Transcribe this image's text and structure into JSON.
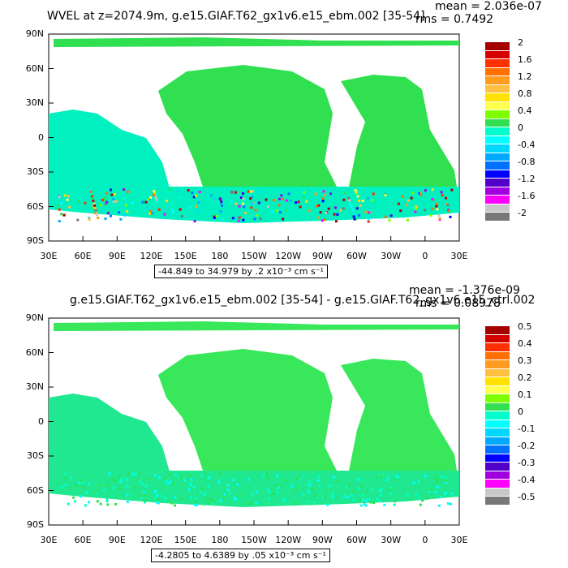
{
  "panels": [
    {
      "title": "WVEL at z=2074.9m, g.e15.GIAF.T62_gx1v6.e15_ebm.002 [35-54]",
      "mean": "mean = 2.036e-07",
      "rms": "rms = 0.7492",
      "range": "-44.849 to 34.979 by .2 x10⁻³ cm s⁻¹",
      "colorbar_labels": [
        "2",
        "1.6",
        "1.2",
        "0.8",
        "0.4",
        "0",
        "-0.4",
        "-0.8",
        "-1.2",
        "-1.6",
        "-2"
      ],
      "colors": [
        "#a50000",
        "#d40000",
        "#ff3000",
        "#ff7000",
        "#ff9c20",
        "#ffbf40",
        "#ffe300",
        "#ffff50",
        "#7dff00",
        "#30e050",
        "#00ffcc",
        "#00ffff",
        "#00d8ff",
        "#00a8ff",
        "#0070ff",
        "#0000ff",
        "#5000c8",
        "#a000e0",
        "#ff00ff",
        "#c8c8c8",
        "#787878"
      ]
    },
    {
      "title": "g.e15.GIAF.T62_gx1v6.e15_ebm.002 [35-54] - g.e15.GIAF.T62_gx1v6.e15_ctrl.002",
      "mean": "mean = -1.376e-09",
      "rms": "rms = 0.08978",
      "range": "-4.2805 to 4.6389 by .05 x10⁻³ cm s⁻¹",
      "colorbar_labels": [
        "0.5",
        "0.4",
        "0.3",
        "0.2",
        "0.1",
        "0",
        "-0.1",
        "-0.2",
        "-0.3",
        "-0.4",
        "-0.5"
      ],
      "colors": [
        "#a50000",
        "#d40000",
        "#ff3000",
        "#ff7000",
        "#ff9c20",
        "#ffbf40",
        "#ffe300",
        "#ffff50",
        "#7dff00",
        "#30e050",
        "#00ffcc",
        "#00ffff",
        "#00d8ff",
        "#00a8ff",
        "#0070ff",
        "#0000ff",
        "#5000c8",
        "#a000e0",
        "#ff00ff",
        "#c8c8c8",
        "#787878"
      ]
    }
  ],
  "lat_labels": [
    "90N",
    "60N",
    "30N",
    "0",
    "30S",
    "60S",
    "90S"
  ],
  "lon_labels": [
    "30E",
    "60E",
    "90E",
    "120E",
    "150E",
    "180",
    "150W",
    "120W",
    "90W",
    "60W",
    "30W",
    "0",
    "30E"
  ]
}
